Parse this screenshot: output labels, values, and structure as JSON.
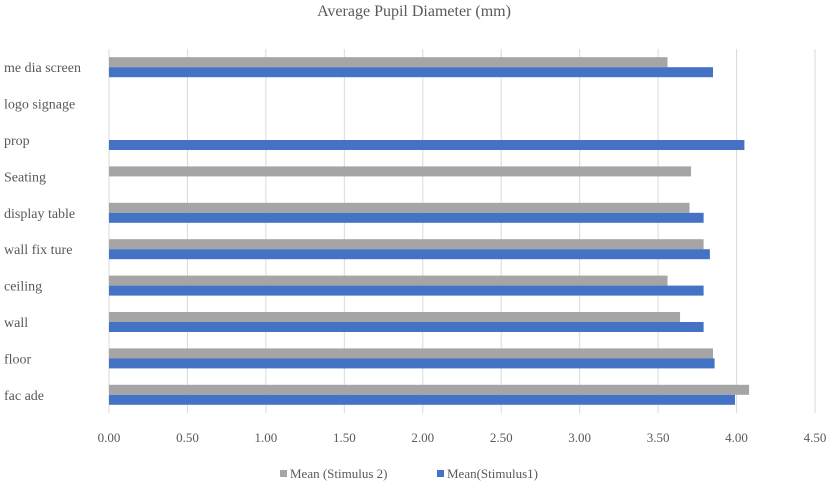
{
  "chart_data": {
    "type": "bar",
    "orientation": "horizontal",
    "title": "Average Pupil Diameter (mm)",
    "xlabel": "",
    "ylabel": "",
    "categories": [
      "media screen",
      "logo signage",
      "prop",
      "Seating",
      "display table",
      "wall fixture",
      "ceiling",
      "wall",
      "floor",
      "facade"
    ],
    "category_display": [
      "me dia screen",
      "logo signage",
      "prop",
      "Seating",
      "display table",
      "wall fix ture",
      "ceiling",
      "wall",
      "floor",
      "fac ade"
    ],
    "series": [
      {
        "name": "Mean (Stimulus 2)",
        "color": "#a5a5a5",
        "values": [
          3.56,
          null,
          null,
          3.71,
          3.7,
          3.79,
          3.56,
          3.64,
          3.85,
          4.08
        ]
      },
      {
        "name": "Mean(Stimulus1)",
        "color": "#4472c4",
        "values": [
          3.85,
          null,
          4.05,
          null,
          3.79,
          3.83,
          3.79,
          3.79,
          3.86,
          3.99
        ]
      }
    ],
    "xlim": [
      0,
      4.5
    ],
    "xticks": [
      "0.00",
      "0.50",
      "1.00",
      "1.50",
      "2.00",
      "2.50",
      "3.00",
      "3.50",
      "4.00",
      "4.50"
    ],
    "grid": true,
    "legend": "bottom"
  }
}
